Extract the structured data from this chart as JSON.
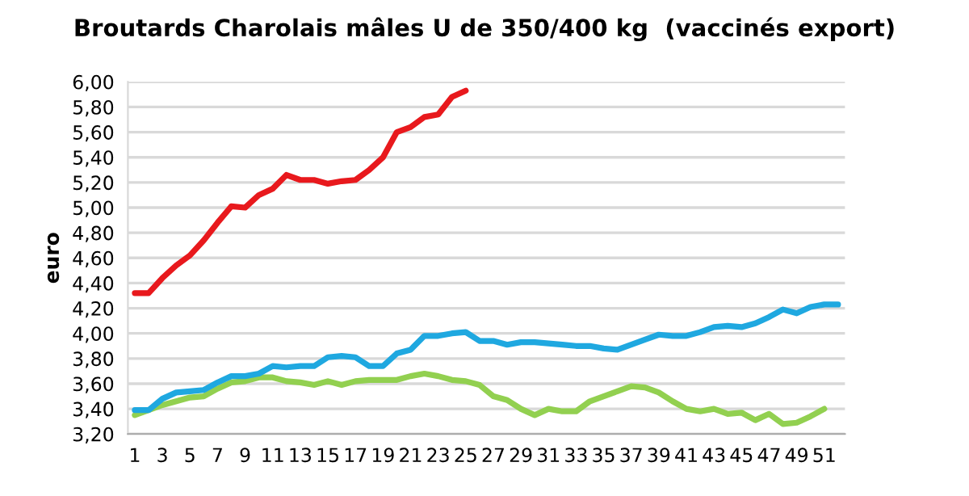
{
  "chart_data": {
    "type": "line",
    "title": "Broutards Charolais mâles U de 350/400 kg  (vaccinés export)",
    "ylabel": "euro",
    "categories": [
      "1",
      null,
      "3",
      null,
      "5",
      null,
      "7",
      null,
      "9",
      null,
      "11",
      null,
      "13",
      null,
      "15",
      null,
      "17",
      null,
      "19",
      null,
      "21",
      null,
      "23",
      null,
      "25",
      null,
      "27",
      null,
      "29",
      null,
      "31",
      null,
      "33",
      null,
      "35",
      null,
      "37",
      null,
      "39",
      null,
      "41",
      null,
      "43",
      null,
      "45",
      null,
      "47",
      null,
      "49",
      null,
      "51",
      null
    ],
    "series": [
      {
        "color": "#92d050",
        "values": [
          3.35,
          3.39,
          3.43,
          3.46,
          3.49,
          3.5,
          3.56,
          3.61,
          3.62,
          3.65,
          3.65,
          3.62,
          3.61,
          3.59,
          3.62,
          3.59,
          3.62,
          3.63,
          3.63,
          3.63,
          3.66,
          3.68,
          3.66,
          3.63,
          3.62,
          3.59,
          3.5,
          3.47,
          3.4,
          3.35,
          3.4,
          3.38,
          3.38,
          3.46,
          3.5,
          3.54,
          3.58,
          3.57,
          3.53,
          3.46,
          3.4,
          3.38,
          3.4,
          3.36,
          3.37,
          3.31,
          3.36,
          3.28,
          3.29,
          3.34,
          3.4,
          null
        ]
      },
      {
        "color": "#1fa8e0",
        "values": [
          3.39,
          3.39,
          3.48,
          3.53,
          3.54,
          3.55,
          3.61,
          3.66,
          3.66,
          3.68,
          3.74,
          3.73,
          3.74,
          3.74,
          3.81,
          3.82,
          3.81,
          3.74,
          3.74,
          3.84,
          3.87,
          3.98,
          3.98,
          4.0,
          4.01,
          3.94,
          3.94,
          3.91,
          3.93,
          3.93,
          3.92,
          3.91,
          3.9,
          3.9,
          3.88,
          3.87,
          3.91,
          3.95,
          3.99,
          3.98,
          3.98,
          4.01,
          4.05,
          4.06,
          4.05,
          4.08,
          4.13,
          4.19,
          4.16,
          4.21,
          4.23,
          4.23
        ]
      },
      {
        "color": "#e8191d",
        "values": [
          4.32,
          4.32,
          4.44,
          4.54,
          4.62,
          4.74,
          4.88,
          5.01,
          5.0,
          5.1,
          5.15,
          5.26,
          5.22,
          5.22,
          5.19,
          5.21,
          5.22,
          5.3,
          5.4,
          5.6,
          5.64,
          5.72,
          5.74,
          5.88,
          5.93,
          null,
          null,
          null,
          null,
          null,
          null,
          null,
          null,
          null,
          null,
          null,
          null,
          null,
          null,
          null,
          null,
          null,
          null,
          null,
          null,
          null,
          null,
          null,
          null,
          null,
          null,
          null
        ]
      }
    ],
    "ylim": [
      3.2,
      6.0
    ],
    "yticks": [
      {
        "value": 3.2,
        "label": "3,20"
      },
      {
        "value": 3.4,
        "label": "3,40"
      },
      {
        "value": 3.6,
        "label": "3,60"
      },
      {
        "value": 3.8,
        "label": "3,80"
      },
      {
        "value": 4.0,
        "label": "4,00"
      },
      {
        "value": 4.2,
        "label": "4,20"
      },
      {
        "value": 4.4,
        "label": "4,40"
      },
      {
        "value": 4.6,
        "label": "4,60"
      },
      {
        "value": 4.8,
        "label": "4,80"
      },
      {
        "value": 5.0,
        "label": "5,00"
      },
      {
        "value": 5.2,
        "label": "5,20"
      },
      {
        "value": 5.4,
        "label": "5,40"
      },
      {
        "value": 5.6,
        "label": "5,60"
      },
      {
        "value": 5.8,
        "label": "5,80"
      },
      {
        "value": 6.0,
        "label": "6,00"
      }
    ],
    "grid": "y"
  }
}
